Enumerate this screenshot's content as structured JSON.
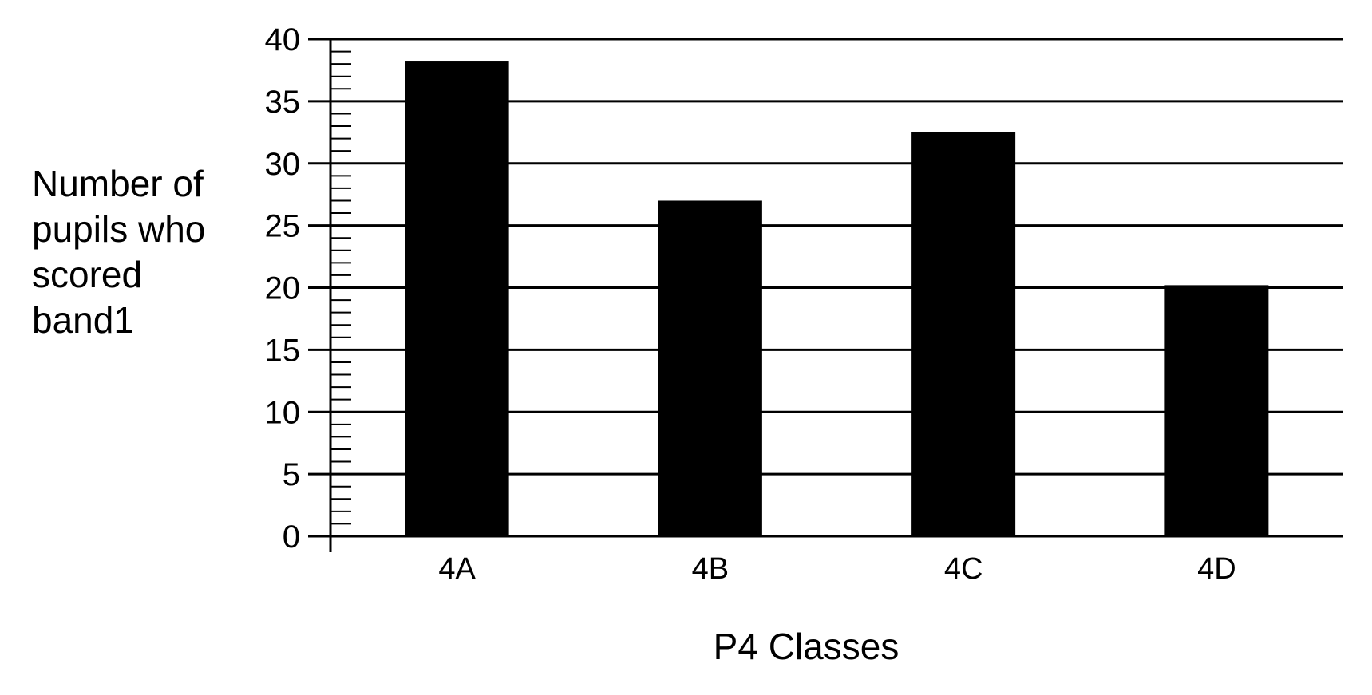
{
  "chart_data": {
    "type": "bar",
    "title": "",
    "xlabel": "P4 Classes",
    "ylabel_lines": [
      "Number of",
      "pupils who",
      "scored",
      "band1"
    ],
    "categories": [
      "4A",
      "4B",
      "4C",
      "4D"
    ],
    "values": [
      38.2,
      27.0,
      32.5,
      20.2
    ],
    "ylim": [
      0,
      40
    ],
    "yticks": [
      "0",
      "5",
      "10",
      "15",
      "20",
      "25",
      "30",
      "35",
      "40"
    ],
    "minor_tick_step": 1,
    "grid": true,
    "bar_color": "#000000",
    "legend": "none"
  }
}
